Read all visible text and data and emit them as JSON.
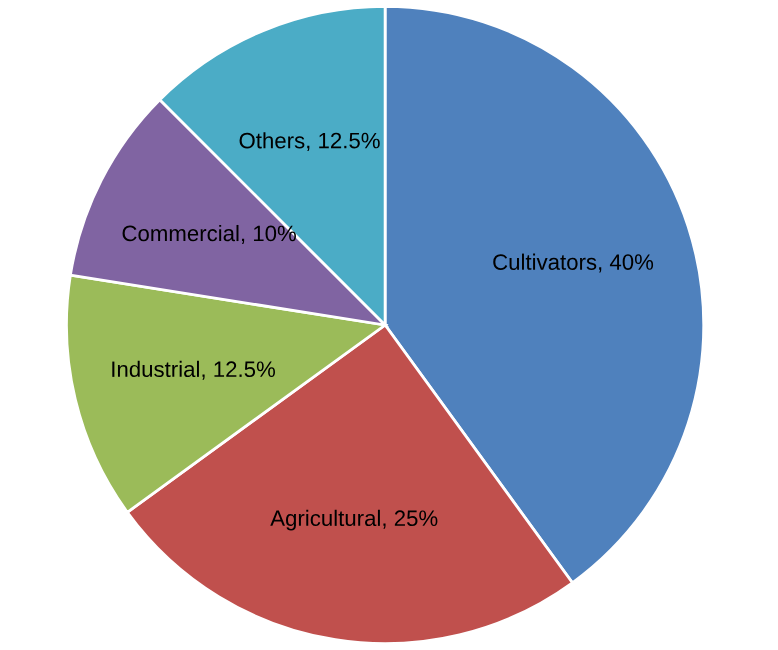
{
  "chart_data": {
    "type": "pie",
    "categories": [
      "Cultivators",
      "Agricultural",
      "Industrial",
      "Commercial",
      "Others"
    ],
    "values": [
      40,
      25,
      12.5,
      10,
      12.5
    ],
    "colors": [
      "#4f81bd",
      "#c0504d",
      "#9bbb59",
      "#8064a2",
      "#4bacc6"
    ],
    "value_labels": [
      "40%",
      "25%",
      "12.5%",
      "10%",
      "12.5%"
    ],
    "legend": false
  }
}
